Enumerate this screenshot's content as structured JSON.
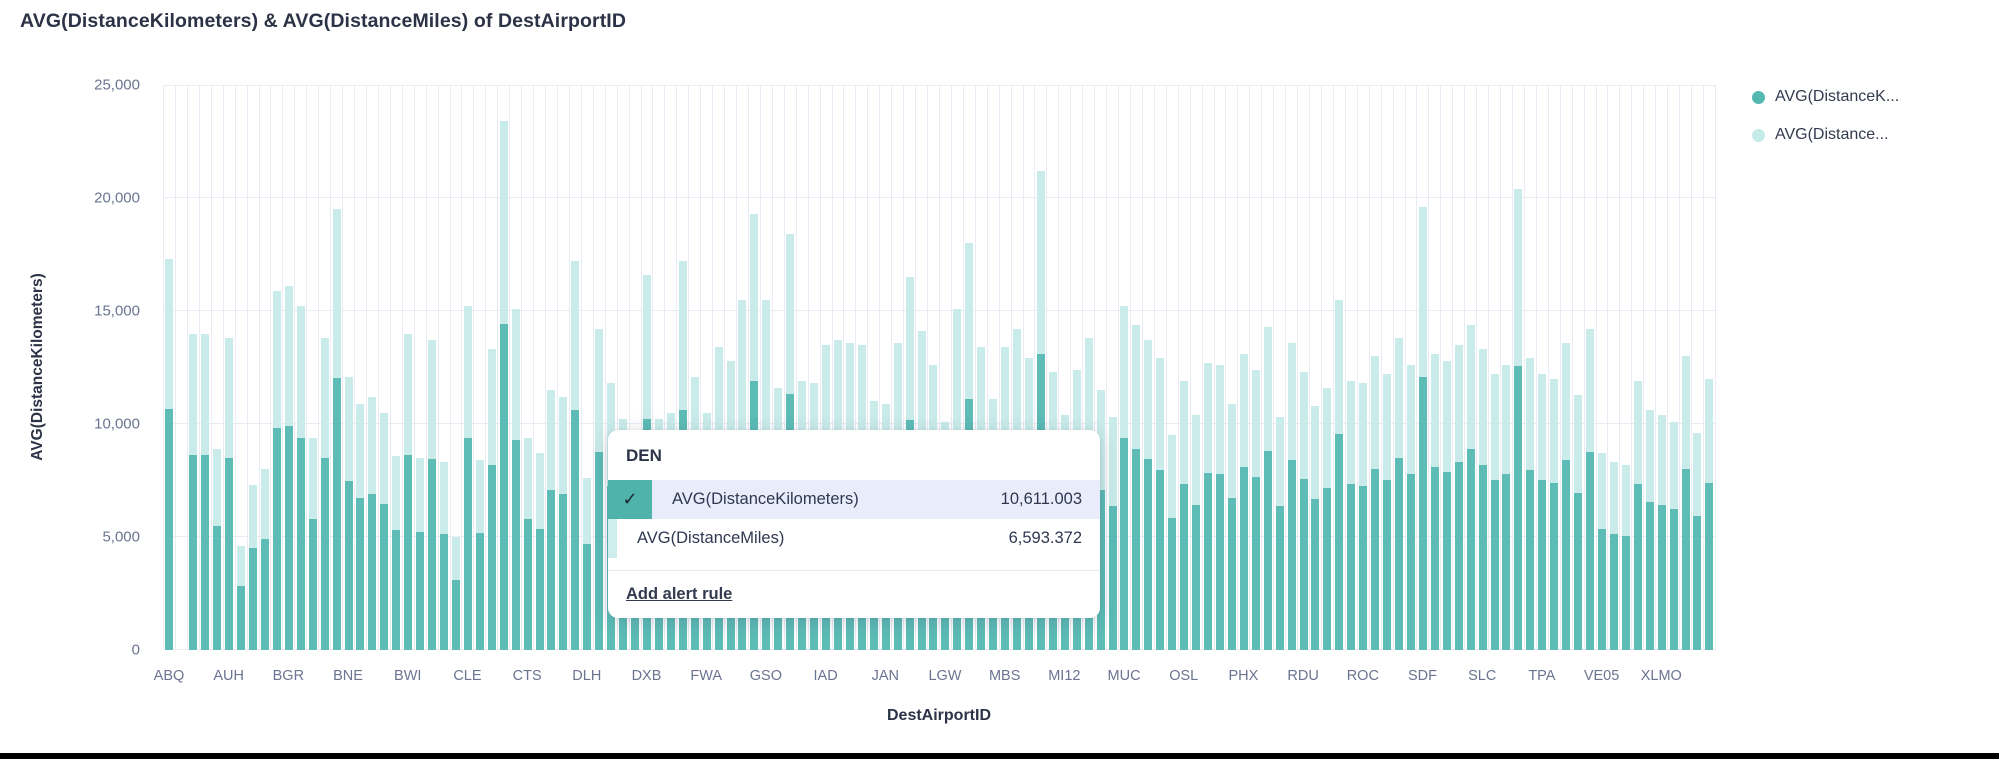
{
  "title": "AVG(DistanceKilometers) & AVG(DistanceMiles) of DestAirportID",
  "colors": {
    "km_bar": "#5dbcb6",
    "mi_bar": "#c9ecea",
    "legend_km_dot": "#54b7b0",
    "legend_mi_dot": "#c5ebe8",
    "grid": "#e9ebf5",
    "text_dark": "#2c3346",
    "axis_text": "#6b7490",
    "tooltip_highlight_bg": "#e9edfb",
    "tooltip_check_bg": "#4fb3ab"
  },
  "legend": {
    "items": [
      {
        "label": "AVG(DistanceK...",
        "series": "AVG(DistanceKilometers)"
      },
      {
        "label": "AVG(Distance...",
        "series": "AVG(DistanceMiles)"
      }
    ]
  },
  "tooltip": {
    "title": "DEN",
    "rows": [
      {
        "label": "AVG(DistanceKilometers)",
        "value": "10,611.003",
        "highlighted": true,
        "checked": true
      },
      {
        "label": "AVG(DistanceMiles)",
        "value": "6,593.372",
        "highlighted": false,
        "checked": false
      }
    ],
    "link": "Add alert rule",
    "hovered_bar_index": 34
  },
  "chart_data": {
    "type": "bar",
    "stacked": true,
    "title": "AVG(DistanceKilometers) & AVG(DistanceMiles) of DestAirportID",
    "xlabel": "DestAirportID",
    "ylabel": "AVG(DistanceKilometers)",
    "ylim": [
      0,
      25000
    ],
    "ytick_labels": [
      "25,000",
      "20,000",
      "15,000",
      "10,000",
      "5,000",
      "0"
    ],
    "ytick_values": [
      25000,
      20000,
      15000,
      10000,
      5000,
      0
    ],
    "grid": true,
    "legend_position": "top-right",
    "x_axis_labels": [
      "ABQ",
      "AUH",
      "BGR",
      "BNE",
      "BWI",
      "CLE",
      "CTS",
      "DLH",
      "DXB",
      "FWA",
      "GSO",
      "IAD",
      "JAN",
      "LGW",
      "MBS",
      "MI12",
      "MUC",
      "OSL",
      "PHX",
      "RDU",
      "ROC",
      "SDF",
      "SLC",
      "TPA",
      "VE05",
      "XLMO"
    ],
    "label_every_n_bars": 5,
    "series": [
      {
        "name": "AVG(DistanceKilometers)"
      },
      {
        "name": "AVG(DistanceMiles)",
        "derived": "km * mi_per_km"
      }
    ],
    "mi_per_km": 0.62137,
    "hovered": {
      "index": 34,
      "category": "DEN",
      "km": 10611.003,
      "mi": 6593.372
    },
    "km_values": [
      10670,
      0,
      8634,
      8634,
      5489,
      8511,
      2837,
      4502,
      4934,
      9806,
      9930,
      9375,
      5797,
      8511,
      12027,
      7463,
      6723,
      6908,
      6476,
      5304,
      8635,
      5242,
      8450,
      5119,
      3084,
      9375,
      5181,
      8203,
      14432,
      9313,
      5797,
      5366,
      7093,
      6908,
      10611.003,
      4687,
      8758,
      7278,
      6291,
      5551,
      10238,
      6291,
      6476,
      10608,
      7463,
      6476,
      8264,
      7894,
      9560,
      11904,
      9560,
      7155,
      11348,
      7339,
      7278,
      8326,
      8450,
      8388,
      8326,
      6784,
      6723,
      8388,
      10177,
      8696,
      7771,
      6229,
      9313,
      11102,
      8264,
      6846,
      8264,
      8758,
      7956,
      13076,
      7586,
      6414,
      7648,
      8511,
      7093,
      6353,
      9375,
      8881,
      8450,
      7956,
      5859,
      7339,
      6414,
      7833,
      7771,
      6723,
      8079,
      7648,
      8820,
      6353,
      8388,
      7586,
      6661,
      7155,
      9560,
      7339,
      7278,
      8018,
      7525,
      8511,
      7771,
      12089,
      8079,
      7894,
      8326,
      8881,
      8203,
      7525,
      7771,
      12582,
      7956,
      7525,
      7401,
      8388,
      6969,
      8758,
      5366,
      5119,
      5057,
      7339,
      6538,
      6414,
      6229,
      8018,
      5921,
      7401
    ]
  }
}
